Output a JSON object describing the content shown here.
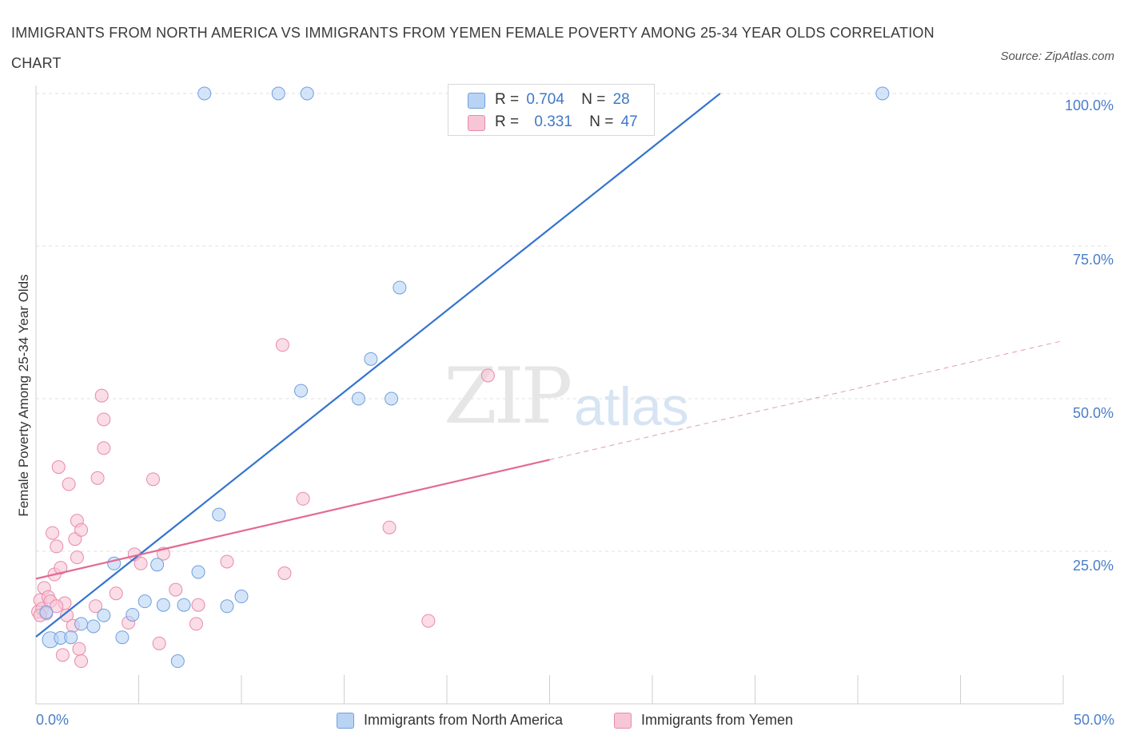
{
  "title": "IMMIGRANTS FROM NORTH AMERICA VS IMMIGRANTS FROM YEMEN FEMALE POVERTY AMONG 25-34 YEAR OLDS CORRELATION CHART",
  "source": "Source: ZipAtlas.com",
  "watermark": {
    "zip": "ZIP",
    "atlas": "atlas"
  },
  "legend": {
    "r_label": "R =",
    "n_label": "N =",
    "north_america": {
      "r": "0.704",
      "n": "28"
    },
    "yemen": {
      "r": "0.331",
      "n": "47"
    }
  },
  "colors": {
    "north_america_fill": "#b9d3f5",
    "north_america_stroke": "#6f9fdc",
    "north_america_line": "#3474cf",
    "yemen_fill": "#f7c6d6",
    "yemen_stroke": "#e88aaa",
    "yemen_line": "#e36a94",
    "tick_label": "#4a7ec9"
  },
  "chart_data": {
    "type": "scatter",
    "title": "IMMIGRANTS FROM NORTH AMERICA VS IMMIGRANTS FROM YEMEN FEMALE POVERTY AMONG 25-34 YEAR OLDS CORRELATION CHART",
    "xlabel": "",
    "ylabel": "Female Poverty Among 25-34 Year Olds",
    "xlim": [
      0,
      50
    ],
    "ylim": [
      0,
      100
    ],
    "x_tick_labels": [
      "0.0%",
      "50.0%"
    ],
    "y_tick_labels": [
      "25.0%",
      "50.0%",
      "75.0%",
      "100.0%"
    ],
    "y_ticks": [
      25,
      50,
      75,
      100
    ],
    "grid": true,
    "legend_position": "top-center",
    "series": [
      {
        "name": "Immigrants from North America",
        "points": [
          [
            0.5,
            15.0
          ],
          [
            0.7,
            10.5
          ],
          [
            1.2,
            10.8
          ],
          [
            1.7,
            10.9
          ],
          [
            2.2,
            13.1
          ],
          [
            2.8,
            12.7
          ],
          [
            3.3,
            14.5
          ],
          [
            3.8,
            23.0
          ],
          [
            4.2,
            10.9
          ],
          [
            4.7,
            14.6
          ],
          [
            5.3,
            16.8
          ],
          [
            5.9,
            22.8
          ],
          [
            6.2,
            16.2
          ],
          [
            6.9,
            7.0
          ],
          [
            7.2,
            16.2
          ],
          [
            7.9,
            21.6
          ],
          [
            8.2,
            100.0
          ],
          [
            9.3,
            16.0
          ],
          [
            8.9,
            31.0
          ],
          [
            10.0,
            17.6
          ],
          [
            11.8,
            100.0
          ],
          [
            12.9,
            51.3
          ],
          [
            13.2,
            100.0
          ],
          [
            15.7,
            50.0
          ],
          [
            16.3,
            56.5
          ],
          [
            17.3,
            50.0
          ],
          [
            17.7,
            68.2
          ],
          [
            41.2,
            100.0
          ]
        ]
      },
      {
        "name": "Immigrants from Yemen",
        "points": [
          [
            0.1,
            15.1
          ],
          [
            0.2,
            17.0
          ],
          [
            0.3,
            15.6
          ],
          [
            0.4,
            19.0
          ],
          [
            0.5,
            14.8
          ],
          [
            0.6,
            17.5
          ],
          [
            0.7,
            16.8
          ],
          [
            0.8,
            28.0
          ],
          [
            0.9,
            21.2
          ],
          [
            1.0,
            25.8
          ],
          [
            1.1,
            38.8
          ],
          [
            1.2,
            22.3
          ],
          [
            1.3,
            8.0
          ],
          [
            1.4,
            16.5
          ],
          [
            1.5,
            14.5
          ],
          [
            1.6,
            36.0
          ],
          [
            1.8,
            12.8
          ],
          [
            1.9,
            27.0
          ],
          [
            2.0,
            30.0
          ],
          [
            2.0,
            24.0
          ],
          [
            2.1,
            9.0
          ],
          [
            2.2,
            7.0
          ],
          [
            2.2,
            28.5
          ],
          [
            2.9,
            16.0
          ],
          [
            3.0,
            37.0
          ],
          [
            3.2,
            50.5
          ],
          [
            3.3,
            46.6
          ],
          [
            3.3,
            41.9
          ],
          [
            3.9,
            18.1
          ],
          [
            4.5,
            13.3
          ],
          [
            4.8,
            24.5
          ],
          [
            5.1,
            23.0
          ],
          [
            5.7,
            36.8
          ],
          [
            6.0,
            9.9
          ],
          [
            6.2,
            24.6
          ],
          [
            6.8,
            18.7
          ],
          [
            7.8,
            13.1
          ],
          [
            7.9,
            16.2
          ],
          [
            9.3,
            23.3
          ],
          [
            12.0,
            58.8
          ],
          [
            12.1,
            21.4
          ],
          [
            13.0,
            33.6
          ],
          [
            17.2,
            28.9
          ],
          [
            19.1,
            13.6
          ],
          [
            22.0,
            53.8
          ],
          [
            0.2,
            14.5
          ],
          [
            1.0,
            16.0
          ]
        ]
      }
    ],
    "trend_lines": [
      {
        "series": "Immigrants from North America",
        "from": [
          0,
          11.0
        ],
        "to": [
          33.3,
          100.0
        ]
      },
      {
        "series": "Immigrants from Yemen",
        "from": [
          0,
          20.5
        ],
        "to": [
          25.0,
          40.0
        ]
      },
      {
        "series": "Immigrants from Yemen (projection)",
        "from": [
          25.0,
          40.0
        ],
        "to": [
          50.0,
          59.5
        ]
      }
    ]
  }
}
